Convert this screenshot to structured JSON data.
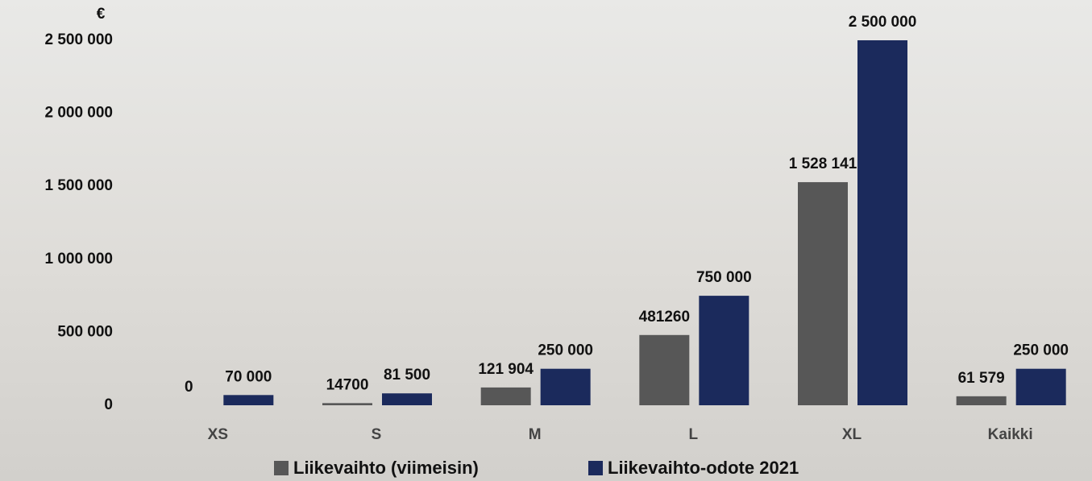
{
  "chart_data": {
    "type": "bar",
    "y_unit_label": "€",
    "categories": [
      "XS",
      "S",
      "M",
      "L",
      "XL",
      "Kaikki"
    ],
    "series": [
      {
        "name": "Liikevaihto (viimeisin)",
        "color": "#575757",
        "values": [
          0,
          14700,
          121904,
          481260,
          1528141,
          61579
        ],
        "value_labels": [
          "0",
          "14700",
          "121 904",
          "481260",
          "1 528 141",
          "61 579"
        ]
      },
      {
        "name": "Liikevaihto-odote 2021",
        "color": "#1b2a5c",
        "values": [
          70000,
          81500,
          250000,
          750000,
          2500000,
          250000
        ],
        "value_labels": [
          "70 000",
          "81 500",
          "250 000",
          "750 000",
          "2 500 000",
          "250 000"
        ]
      }
    ],
    "ylim": [
      0,
      2500000
    ],
    "yticks": [
      0,
      {
        "value": 500000,
        "label": "500 000"
      },
      {
        "value": 1000000,
        "label": "1 000 000"
      },
      {
        "value": 1500000,
        "label": "1 500 000"
      },
      {
        "value": 2000000,
        "label": "2 000 000"
      },
      {
        "value": 2500000,
        "label": "2 500 000"
      }
    ],
    "grid": false,
    "legend": "bottom"
  }
}
